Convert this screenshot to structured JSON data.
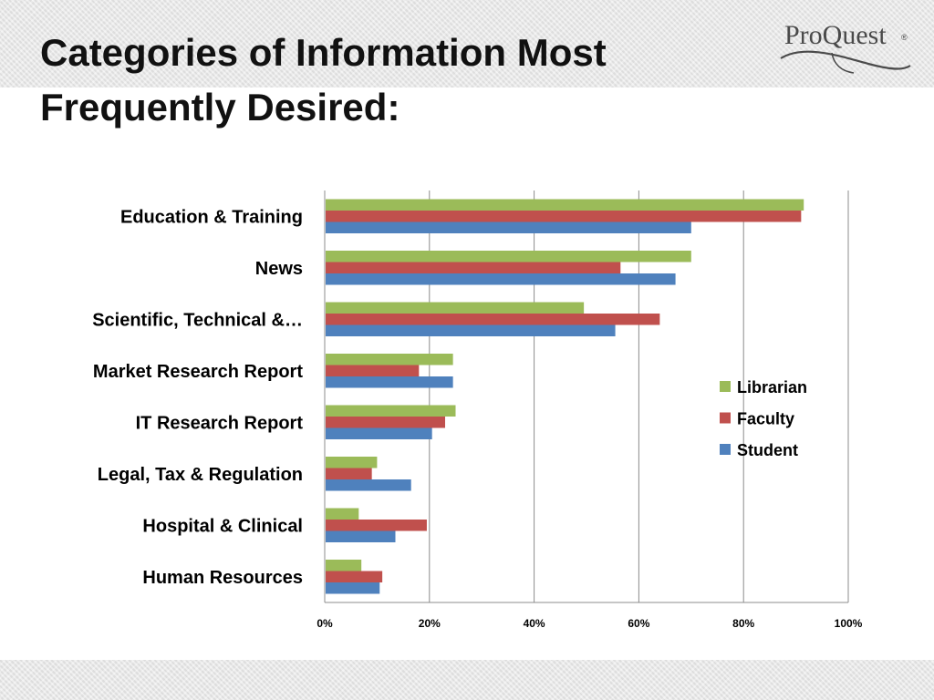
{
  "slide": {
    "title_line1": "Categories of Information Most",
    "title_line2": "Frequently Desired:",
    "logo_text": "ProQuest",
    "logo_mark": "®"
  },
  "colors": {
    "librarian": "#9bbb59",
    "faculty": "#c0504d",
    "student": "#4f81bd",
    "grid": "#8c8c8c",
    "text": "#000000"
  },
  "chart_data": {
    "type": "bar",
    "orientation": "horizontal",
    "title": "",
    "xlabel": "",
    "ylabel": "",
    "xlim": [
      0,
      100
    ],
    "x_ticks": [
      "0%",
      "20%",
      "40%",
      "60%",
      "80%",
      "100%"
    ],
    "grid": true,
    "legend_position": "right",
    "categories": [
      "Education & Training",
      "News",
      "Scientific, Technical &…",
      "Market Research Report",
      "IT Research Report",
      "Legal, Tax & Regulation",
      "Hospital & Clinical",
      "Human Resources"
    ],
    "series": [
      {
        "name": "Librarian",
        "color": "#9bbb59",
        "values": [
          91.5,
          70,
          49.5,
          24.5,
          25,
          10,
          6.5,
          7
        ]
      },
      {
        "name": "Faculty",
        "color": "#c0504d",
        "values": [
          91,
          56.5,
          64,
          18,
          23,
          9,
          19.5,
          11
        ]
      },
      {
        "name": "Student",
        "color": "#4f81bd",
        "values": [
          70,
          67,
          55.5,
          24.5,
          20.5,
          16.5,
          13.5,
          10.5
        ]
      }
    ]
  }
}
